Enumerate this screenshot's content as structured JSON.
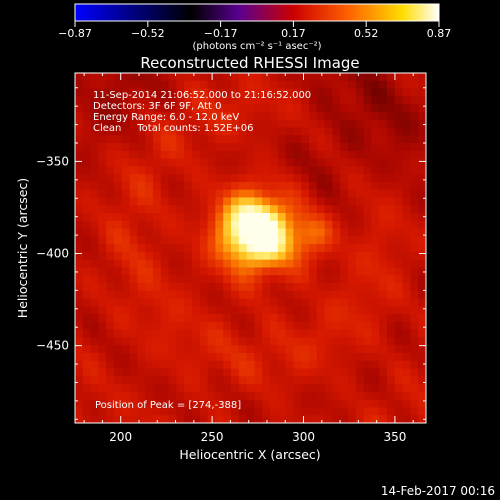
{
  "chart_data": {
    "type": "heatmap",
    "title": "Reconstructed RHESSI Image",
    "xlabel": "Heliocentric X (arcsec)",
    "ylabel": "Heliocentric Y (arcsec)",
    "xlim": [
      175,
      367
    ],
    "ylim": [
      -492,
      -302
    ],
    "x_ticks": [
      200,
      250,
      300,
      350
    ],
    "y_ticks": [
      -350,
      -400,
      -450
    ],
    "colorbar": {
      "label": "(photons cm⁻² s⁻¹ asec⁻²)",
      "range": [
        -0.87,
        0.87
      ],
      "ticks": [
        "-0.87",
        "-0.52",
        "-0.17",
        "0.17",
        "0.52",
        "0.87"
      ],
      "colormap": [
        "#0000ff",
        "#000000",
        "#6a00a8",
        "#cc0000",
        "#ff8000",
        "#ffff00",
        "#ffffff"
      ]
    },
    "annotations": [
      "11-Sep-2014 21:06:52.000 to 21:16:52.000",
      "Detectors: 3F 6F 9F, Att 0",
      "Energy Range: 6.0 - 12.0 keV",
      "Clean     Total counts: 1.52E+06"
    ],
    "peak_label": "Position of Peak = [274,-388]",
    "peak": {
      "x": 274,
      "y": -388
    },
    "secondary_source": {
      "x": 305,
      "y": -391
    }
  },
  "footer": {
    "date": "14-Feb-2017 00:16"
  }
}
